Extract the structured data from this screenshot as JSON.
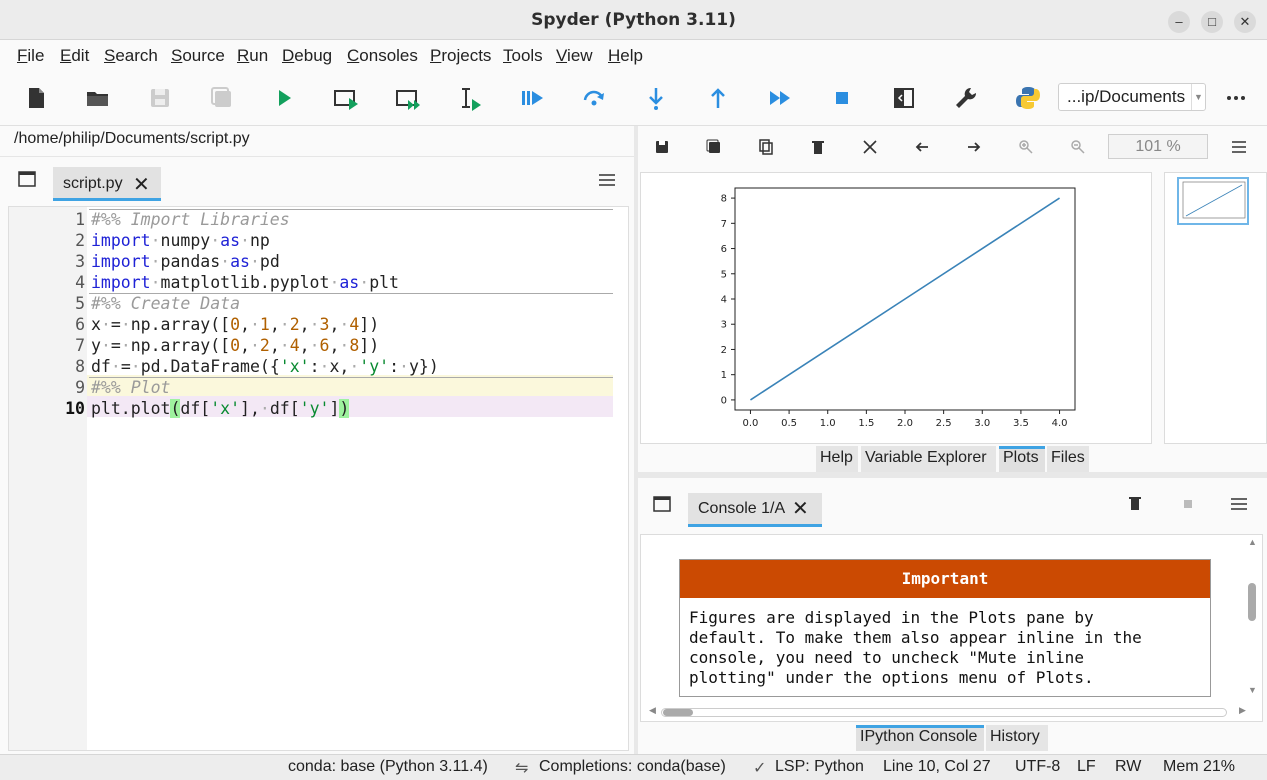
{
  "window": {
    "title": "Spyder (Python 3.11)"
  },
  "menu": [
    "File",
    "Edit",
    "Search",
    "Source",
    "Run",
    "Debug",
    "Consoles",
    "Projects",
    "Tools",
    "View",
    "Help"
  ],
  "toolbar": {
    "icons": [
      "new-file-icon",
      "open-file-icon",
      "save-icon",
      "save-all-icon",
      "run-icon",
      "run-cell-icon",
      "run-cell-advance-icon",
      "run-selection-icon",
      "debug-icon",
      "step-over-icon",
      "step-into-icon",
      "step-out-icon",
      "continue-icon",
      "stop-icon",
      "maximize-pane-icon",
      "preferences-icon",
      "python-path-icon"
    ],
    "working_dir": "...ip/Documents"
  },
  "editor": {
    "file_path": "/home/philip/Documents/script.py",
    "tab_label": "script.py",
    "current_line": 10,
    "lines": [
      {
        "n": "1",
        "text": "#%% Import Libraries"
      },
      {
        "n": "2",
        "text": "import numpy as np"
      },
      {
        "n": "3",
        "text": "import pandas as pd"
      },
      {
        "n": "4",
        "text": "import matplotlib.pyplot as plt"
      },
      {
        "n": "5",
        "text": "#%% Create Data"
      },
      {
        "n": "6",
        "text": "x = np.array([0, 1, 2, 3, 4])"
      },
      {
        "n": "7",
        "text": "y = np.array([0, 2, 4, 6, 8])"
      },
      {
        "n": "8",
        "text": "df = pd.DataFrame({'x': x, 'y': y})"
      },
      {
        "n": "9",
        "text": "#%% Plot"
      },
      {
        "n": "10",
        "text": "plt.plot(df['x'], df['y'])"
      }
    ]
  },
  "plots": {
    "zoom": "101 %",
    "tabs": [
      "Help",
      "Variable Explorer",
      "Plots",
      "Files"
    ],
    "active_tab": "Plots"
  },
  "chart_data": {
    "type": "line",
    "x": [
      0,
      1,
      2,
      3,
      4
    ],
    "series": [
      {
        "values": [
          0,
          2,
          4,
          6,
          8
        ],
        "color": "#3a83b8"
      }
    ],
    "xticks": [
      "0.0",
      "0.5",
      "1.0",
      "1.5",
      "2.0",
      "2.5",
      "3.0",
      "3.5",
      "4.0"
    ],
    "yticks": [
      "0",
      "1",
      "2",
      "3",
      "4",
      "5",
      "6",
      "7",
      "8"
    ],
    "xlim": [
      -0.2,
      4.2
    ],
    "ylim": [
      -0.4,
      8.4
    ],
    "title": "",
    "xlabel": "",
    "ylabel": ""
  },
  "console": {
    "tab_label": "Console 1/A",
    "important_title": "Important",
    "important_lines": [
      "Figures are displayed in the Plots pane by",
      "default. To make them also appear inline in the",
      "console, you need to uncheck \"Mute inline",
      "plotting\" under the options menu of Plots."
    ],
    "tabs": [
      "IPython Console",
      "History"
    ],
    "active_tab": "IPython Console"
  },
  "status": {
    "env": "conda: base (Python 3.11.4)",
    "completions": "Completions: conda(base)",
    "lsp": "LSP: Python",
    "position": "Line 10, Col 27",
    "encoding": "UTF-8",
    "eol": "LF",
    "mode": "RW",
    "memory": "Mem 21%"
  },
  "colors": {
    "accent": "#3fa3e3",
    "important_header": "#cb4a02",
    "keyword": "#1f22d6",
    "string": "#088a30",
    "number": "#b06000",
    "comment": "#9a9a9a"
  }
}
